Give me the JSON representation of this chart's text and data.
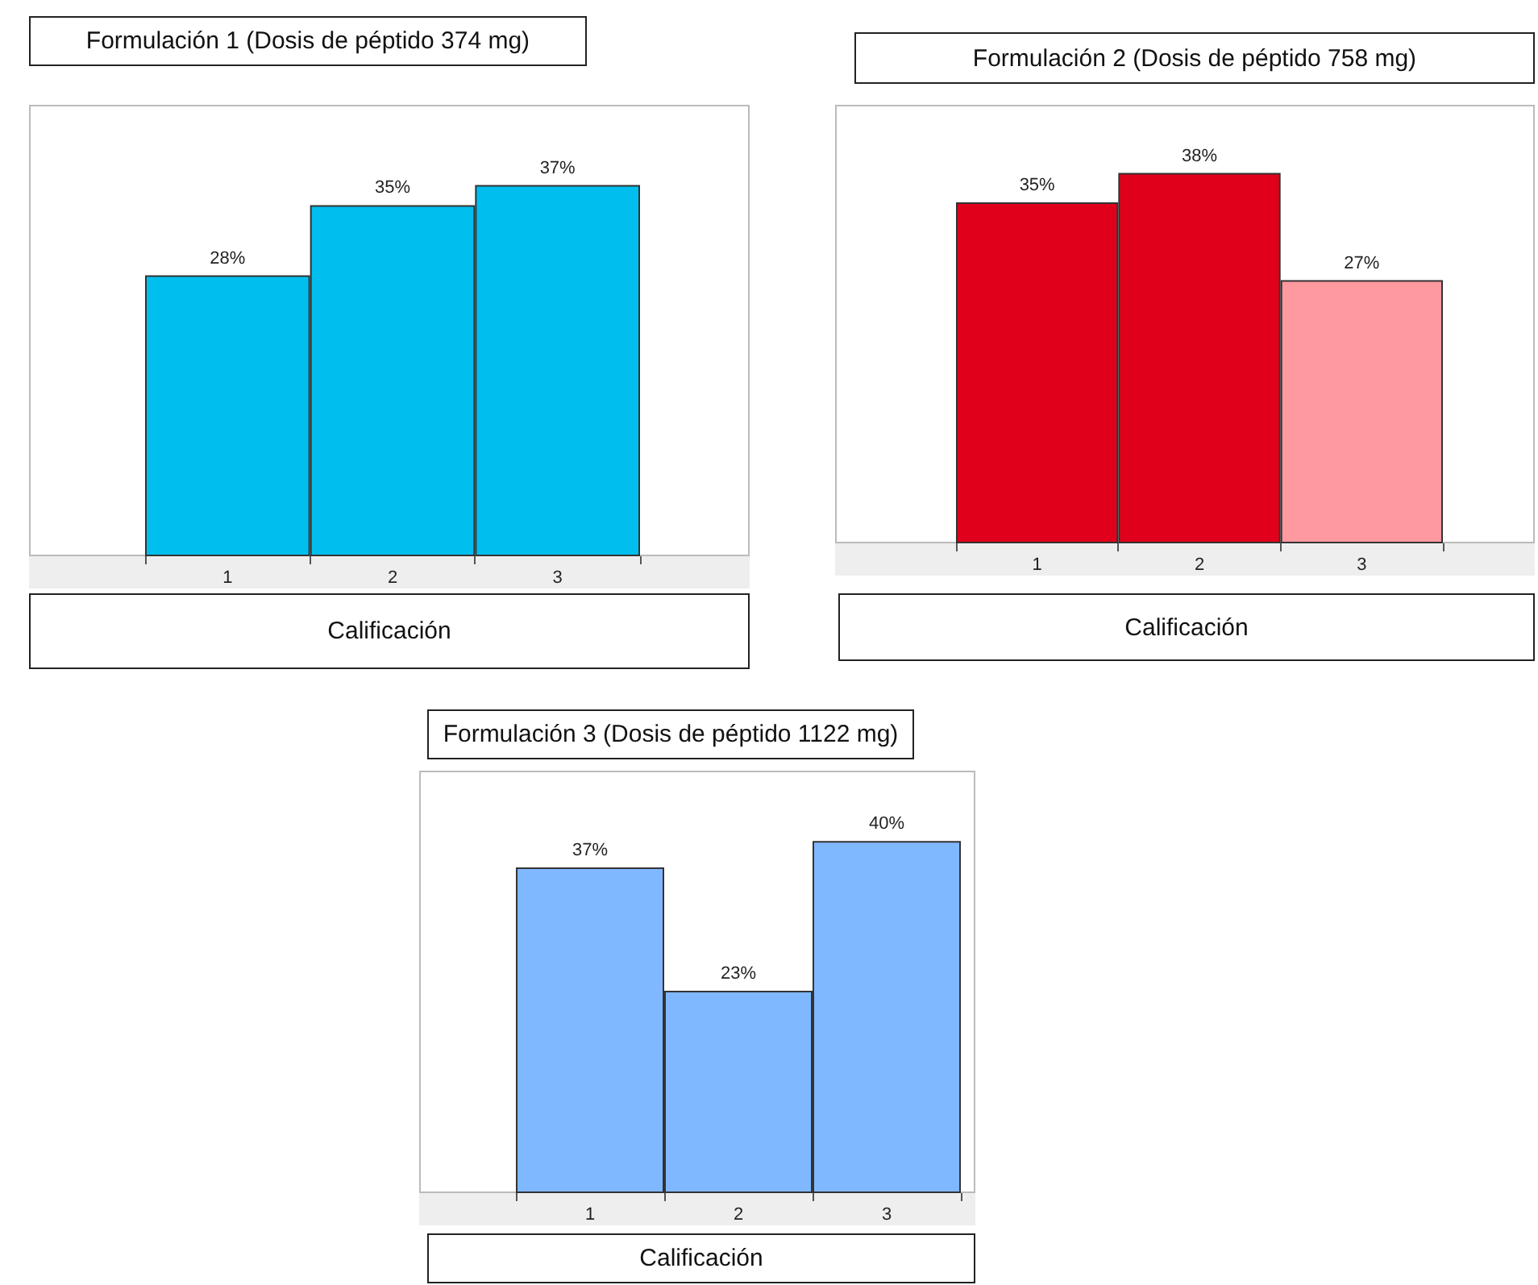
{
  "chart_data": [
    {
      "type": "bar",
      "title": "Formulación 1 (Dosis de péptido 374 mg)",
      "xlabel": "Calificación",
      "categories": [
        "1",
        "2",
        "3"
      ],
      "values": [
        28,
        35,
        37
      ],
      "value_labels": [
        "28%",
        "35%",
        "37%"
      ],
      "colors": [
        "#00bfef",
        "#00bfef",
        "#00bfef"
      ],
      "ylim": [
        0,
        45
      ],
      "tick_labels": "x"
    },
    {
      "type": "bar",
      "title": "Formulación 2 (Dosis de péptido 758 mg)",
      "xlabel": "Calificación",
      "categories": [
        "1",
        "2",
        "3"
      ],
      "values": [
        35,
        38,
        27
      ],
      "value_labels": [
        "35%",
        "38%",
        "27%"
      ],
      "colors": [
        "#e0001b",
        "#e0001b",
        "#ff99a0"
      ],
      "ylim": [
        0,
        45
      ],
      "tick_labels": "x"
    },
    {
      "type": "bar",
      "title": "Formulación 3 (Dosis de péptido 1122 mg)",
      "xlabel": "Calificación",
      "categories": [
        "1",
        "2",
        "3"
      ],
      "values": [
        37,
        23,
        40
      ],
      "value_labels": [
        "37%",
        "23%",
        "40%"
      ],
      "colors": [
        "#80b8ff",
        "#80b8ff",
        "#80b8ff"
      ],
      "ylim": [
        0,
        48
      ],
      "tick_labels": "x"
    }
  ]
}
